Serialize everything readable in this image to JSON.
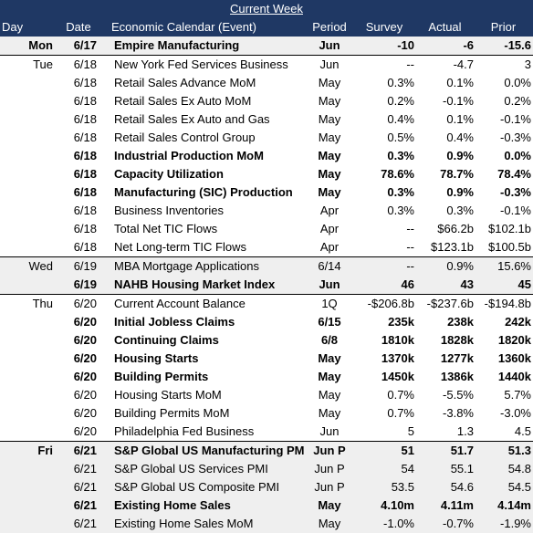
{
  "title": "Current Week",
  "columns": {
    "day": "Day",
    "date": "Date",
    "event": "Economic Calendar (Event)",
    "period": "Period",
    "survey": "Survey",
    "actual": "Actual",
    "prior": "Prior"
  },
  "rows": [
    {
      "day": "Mon",
      "date": "6/17",
      "event": "Empire Manufacturing",
      "period": "Jun",
      "survey": "-10",
      "actual": "-6",
      "prior": "-15.6",
      "bold": true,
      "shade": true,
      "sep": false
    },
    {
      "day": "Tue",
      "date": "6/18",
      "event": "New York Fed Services Business",
      "period": "Jun",
      "survey": "--",
      "actual": "-4.7",
      "prior": "3",
      "bold": false,
      "shade": false,
      "sep": true
    },
    {
      "day": "",
      "date": "6/18",
      "event": "Retail Sales Advance MoM",
      "period": "May",
      "survey": "0.3%",
      "actual": "0.1%",
      "prior": "0.0%",
      "bold": false,
      "shade": false,
      "sep": false
    },
    {
      "day": "",
      "date": "6/18",
      "event": "Retail Sales Ex Auto MoM",
      "period": "May",
      "survey": "0.2%",
      "actual": "-0.1%",
      "prior": "0.2%",
      "bold": false,
      "shade": false,
      "sep": false
    },
    {
      "day": "",
      "date": "6/18",
      "event": "Retail Sales Ex Auto and Gas",
      "period": "May",
      "survey": "0.4%",
      "actual": "0.1%",
      "prior": "-0.1%",
      "bold": false,
      "shade": false,
      "sep": false
    },
    {
      "day": "",
      "date": "6/18",
      "event": "Retail Sales Control Group",
      "period": "May",
      "survey": "0.5%",
      "actual": "0.4%",
      "prior": "-0.3%",
      "bold": false,
      "shade": false,
      "sep": false
    },
    {
      "day": "",
      "date": "6/18",
      "event": "Industrial Production MoM",
      "period": "May",
      "survey": "0.3%",
      "actual": "0.9%",
      "prior": "0.0%",
      "bold": true,
      "shade": false,
      "sep": false
    },
    {
      "day": "",
      "date": "6/18",
      "event": "Capacity Utilization",
      "period": "May",
      "survey": "78.6%",
      "actual": "78.7%",
      "prior": "78.4%",
      "bold": true,
      "shade": false,
      "sep": false
    },
    {
      "day": "",
      "date": "6/18",
      "event": "Manufacturing (SIC) Production",
      "period": "May",
      "survey": "0.3%",
      "actual": "0.9%",
      "prior": "-0.3%",
      "bold": true,
      "shade": false,
      "sep": false
    },
    {
      "day": "",
      "date": "6/18",
      "event": "Business Inventories",
      "period": "Apr",
      "survey": "0.3%",
      "actual": "0.3%",
      "prior": "-0.1%",
      "bold": false,
      "shade": false,
      "sep": false
    },
    {
      "day": "",
      "date": "6/18",
      "event": "Total Net TIC Flows",
      "period": "Apr",
      "survey": "--",
      "actual": "$66.2b",
      "prior": "$102.1b",
      "bold": false,
      "shade": false,
      "sep": false
    },
    {
      "day": "",
      "date": "6/18",
      "event": "Net Long-term TIC Flows",
      "period": "Apr",
      "survey": "--",
      "actual": "$123.1b",
      "prior": "$100.5b",
      "bold": false,
      "shade": false,
      "sep": false
    },
    {
      "day": "Wed",
      "date": "6/19",
      "event": "MBA Mortgage Applications",
      "period": "6/14",
      "survey": "--",
      "actual": "0.9%",
      "prior": "15.6%",
      "bold": false,
      "shade": true,
      "sep": true
    },
    {
      "day": "",
      "date": "6/19",
      "event": "NAHB Housing Market Index",
      "period": "Jun",
      "survey": "46",
      "actual": "43",
      "prior": "45",
      "bold": true,
      "shade": true,
      "sep": false
    },
    {
      "day": "Thu",
      "date": "6/20",
      "event": "Current Account Balance",
      "period": "1Q",
      "survey": "-$206.8b",
      "actual": "-$237.6b",
      "prior": "-$194.8b",
      "bold": false,
      "shade": false,
      "sep": true
    },
    {
      "day": "",
      "date": "6/20",
      "event": "Initial Jobless Claims",
      "period": "6/15",
      "survey": "235k",
      "actual": "238k",
      "prior": "242k",
      "bold": true,
      "shade": false,
      "sep": false
    },
    {
      "day": "",
      "date": "6/20",
      "event": "Continuing Claims",
      "period": "6/8",
      "survey": "1810k",
      "actual": "1828k",
      "prior": "1820k",
      "bold": true,
      "shade": false,
      "sep": false
    },
    {
      "day": "",
      "date": "6/20",
      "event": "Housing Starts",
      "period": "May",
      "survey": "1370k",
      "actual": "1277k",
      "prior": "1360k",
      "bold": true,
      "shade": false,
      "sep": false
    },
    {
      "day": "",
      "date": "6/20",
      "event": "Building Permits",
      "period": "May",
      "survey": "1450k",
      "actual": "1386k",
      "prior": "1440k",
      "bold": true,
      "shade": false,
      "sep": false
    },
    {
      "day": "",
      "date": "6/20",
      "event": "Housing Starts MoM",
      "period": "May",
      "survey": "0.7%",
      "actual": "-5.5%",
      "prior": "5.7%",
      "bold": false,
      "shade": false,
      "sep": false
    },
    {
      "day": "",
      "date": "6/20",
      "event": "Building Permits MoM",
      "period": "May",
      "survey": "0.7%",
      "actual": "-3.8%",
      "prior": "-3.0%",
      "bold": false,
      "shade": false,
      "sep": false
    },
    {
      "day": "",
      "date": "6/20",
      "event": "Philadelphia Fed Business",
      "period": "Jun",
      "survey": "5",
      "actual": "1.3",
      "prior": "4.5",
      "bold": false,
      "shade": false,
      "sep": false
    },
    {
      "day": "Fri",
      "date": "6/21",
      "event": "S&P Global US Manufacturing PMI",
      "period": "Jun P",
      "survey": "51",
      "actual": "51.7",
      "prior": "51.3",
      "bold": true,
      "shade": true,
      "sep": true
    },
    {
      "day": "",
      "date": "6/21",
      "event": "S&P Global US Services PMI",
      "period": "Jun P",
      "survey": "54",
      "actual": "55.1",
      "prior": "54.8",
      "bold": false,
      "shade": true,
      "sep": false
    },
    {
      "day": "",
      "date": "6/21",
      "event": "S&P Global US Composite PMI",
      "period": "Jun P",
      "survey": "53.5",
      "actual": "54.6",
      "prior": "54.5",
      "bold": false,
      "shade": true,
      "sep": false
    },
    {
      "day": "",
      "date": "6/21",
      "event": "Existing Home Sales",
      "period": "May",
      "survey": "4.10m",
      "actual": "4.11m",
      "prior": "4.14m",
      "bold": true,
      "shade": true,
      "sep": false
    },
    {
      "day": "",
      "date": "6/21",
      "event": "Existing Home Sales MoM",
      "period": "May",
      "survey": "-1.0%",
      "actual": "-0.7%",
      "prior": "-1.9%",
      "bold": false,
      "shade": true,
      "sep": false
    }
  ]
}
